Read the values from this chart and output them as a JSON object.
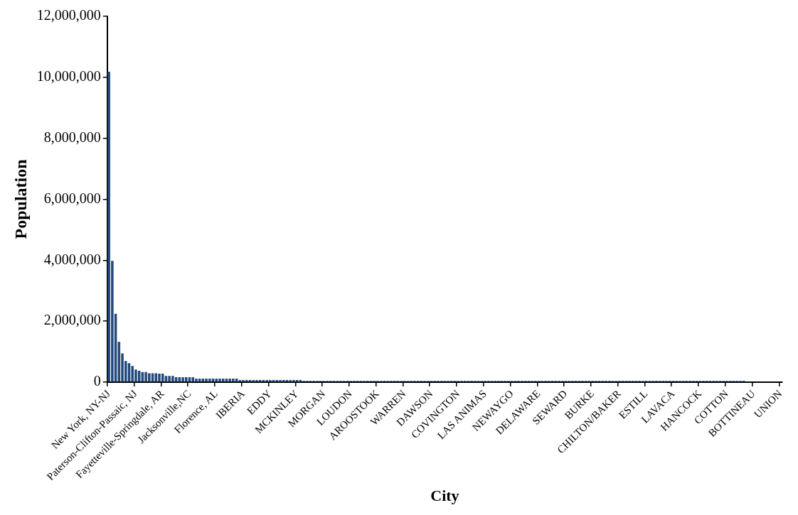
{
  "chart_data": {
    "type": "bar",
    "xlabel": "City",
    "ylabel": "Population",
    "color": "#234a7c",
    "categories": [
      "New York, NY-NJ",
      null,
      null,
      null,
      null,
      null,
      null,
      null,
      "Paterson-Clifton-Passaic, NJ",
      null,
      null,
      null,
      null,
      null,
      null,
      null,
      "Fayetteville-Springdale, AR",
      null,
      null,
      null,
      null,
      null,
      null,
      null,
      "Jacksonville,NC",
      null,
      null,
      null,
      null,
      null,
      null,
      null,
      "Florence, AL",
      null,
      null,
      null,
      null,
      null,
      null,
      null,
      "IBERIA",
      null,
      null,
      null,
      null,
      null,
      null,
      null,
      "EDDY",
      null,
      null,
      null,
      null,
      null,
      null,
      null,
      "MCKINLEY",
      null,
      null,
      null,
      null,
      null,
      null,
      null,
      "MORGAN",
      null,
      null,
      null,
      null,
      null,
      null,
      null,
      "LOUDON",
      null,
      null,
      null,
      null,
      null,
      null,
      null,
      "AROOSTOOK",
      null,
      null,
      null,
      null,
      null,
      null,
      null,
      "WARREN",
      null,
      null,
      null,
      null,
      null,
      null,
      null,
      "DAWSON",
      null,
      null,
      null,
      null,
      null,
      null,
      null,
      "COVINGTON",
      null,
      null,
      null,
      null,
      null,
      null,
      null,
      "LAS ANIMAS",
      null,
      null,
      null,
      null,
      null,
      null,
      null,
      "NEWAYGO",
      null,
      null,
      null,
      null,
      null,
      null,
      null,
      "DELAWARE",
      null,
      null,
      null,
      null,
      null,
      null,
      null,
      "SEWARD",
      null,
      null,
      null,
      null,
      null,
      null,
      null,
      "BURKE",
      null,
      null,
      null,
      null,
      null,
      null,
      null,
      "CHILTON/BAKER",
      null,
      null,
      null,
      null,
      null,
      null,
      null,
      "ESTILL",
      null,
      null,
      null,
      null,
      null,
      null,
      null,
      "LAVACA",
      null,
      null,
      null,
      null,
      null,
      null,
      null,
      "HANCOCK",
      null,
      null,
      null,
      null,
      null,
      null,
      null,
      "COTTON",
      null,
      null,
      null,
      null,
      null,
      null,
      null,
      "BOTTINEAU",
      null,
      null,
      null,
      null,
      null,
      null,
      null,
      "UNION"
    ],
    "values": [
      10180000,
      3980000,
      2240000,
      1320000,
      940000,
      690000,
      620000,
      530000,
      410000,
      370000,
      330000,
      330000,
      290000,
      290000,
      290000,
      280000,
      280000,
      200000,
      200000,
      200000,
      160000,
      160000,
      160000,
      160000,
      160000,
      160000,
      115000,
      115000,
      115000,
      115000,
      115000,
      115000,
      115000,
      115000,
      115000,
      115000,
      115000,
      115000,
      115000,
      70000,
      70000,
      70000,
      70000,
      70000,
      70000,
      70000,
      70000,
      70000,
      70000,
      70000,
      70000,
      70000,
      70000,
      70000,
      70000,
      70000,
      70000,
      70000,
      40000,
      40000,
      40000,
      40000,
      40000,
      40000,
      40000,
      40000,
      40000,
      40000,
      40000,
      40000,
      40000,
      40000,
      40000,
      40000,
      40000,
      40000,
      40000,
      40000,
      40000,
      40000,
      40000,
      40000,
      40000,
      40000,
      40000,
      40000,
      40000,
      40000,
      40000,
      40000,
      40000,
      40000,
      40000,
      40000,
      40000,
      40000,
      40000,
      40000,
      40000,
      40000,
      40000,
      40000,
      40000,
      40000,
      40000,
      40000,
      40000,
      40000,
      40000,
      40000,
      40000,
      40000,
      40000,
      40000,
      40000,
      40000,
      40000,
      40000,
      40000,
      40000,
      40000,
      40000,
      40000,
      40000,
      40000,
      40000,
      40000,
      40000,
      40000,
      40000,
      40000,
      40000,
      40000,
      40000,
      40000,
      40000,
      40000,
      40000,
      40000,
      40000,
      40000,
      40000,
      40000,
      40000,
      40000,
      40000,
      40000,
      40000,
      40000,
      40000,
      40000,
      40000,
      40000,
      40000,
      40000,
      40000,
      40000,
      40000,
      40000,
      40000,
      40000,
      40000,
      40000,
      40000,
      40000,
      40000,
      40000,
      40000,
      40000,
      40000,
      40000,
      40000,
      40000,
      40000,
      40000,
      40000,
      40000,
      40000,
      40000,
      40000,
      40000,
      40000,
      40000,
      40000,
      40000,
      40000,
      40000,
      40000,
      40000,
      40000,
      0,
      0,
      0,
      0,
      0,
      0,
      0,
      0,
      0,
      0,
      0
    ],
    "ylim": [
      0,
      12000000
    ],
    "yticks": [
      0,
      {
        "value": 2000000,
        "label": "2,000,000"
      },
      {
        "value": 4000000,
        "label": "4,000,000"
      },
      {
        "value": 6000000,
        "label": "6,000,000"
      },
      {
        "value": 8000000,
        "label": "8,000,000"
      },
      {
        "value": 10000000,
        "label": "10,000,000"
      },
      {
        "value": 12000000,
        "label": "12,000,000"
      }
    ],
    "grid": false,
    "legend": false
  }
}
